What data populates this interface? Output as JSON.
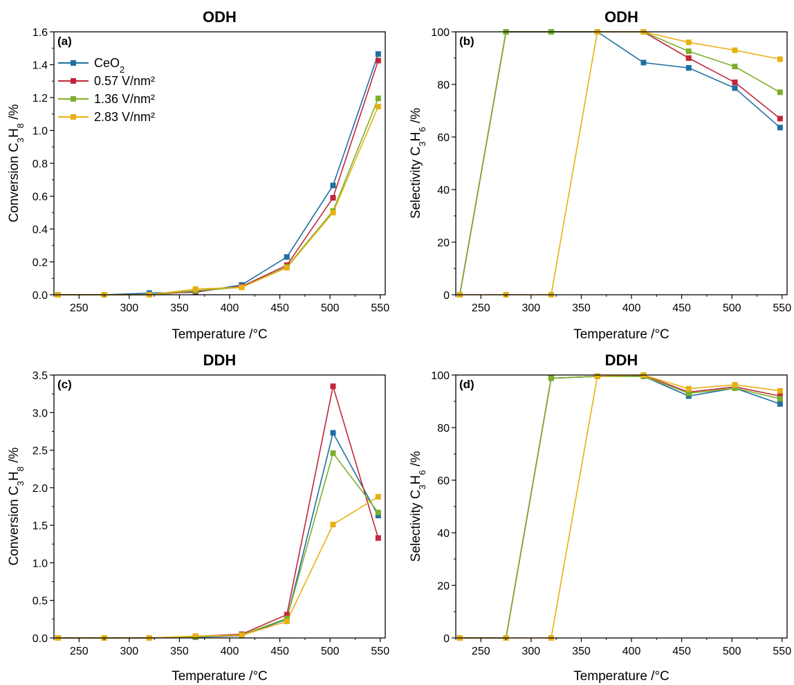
{
  "chart_data": [
    {
      "type": "line",
      "title": "ODH",
      "panel_label": "(a)",
      "xlabel": "Temperature /°C",
      "ylabel": {
        "pre": "Conversion C",
        "s1": "3",
        "mid": "H",
        "s2": "8",
        "post": " /%"
      },
      "xlim": [
        225,
        555
      ],
      "ylim": [
        0,
        1.6
      ],
      "xticks": [
        250,
        300,
        350,
        400,
        450,
        500,
        550
      ],
      "yticks": [
        "0.0",
        "0.2",
        "0.4",
        "0.6",
        "0.8",
        "1.0",
        "1.2",
        "1.4",
        "1.6"
      ],
      "legend": {
        "placement": "top-left"
      },
      "x": [
        229,
        275,
        320,
        366,
        412,
        457,
        503,
        548
      ],
      "series": [
        {
          "name": "CeO",
          "name_sub": "2",
          "color": "#1F6FA0",
          "values": [
            0.0,
            0.0,
            0.01,
            0.015,
            0.06,
            0.23,
            0.665,
            1.465
          ]
        },
        {
          "name": "0.57 V/nm²",
          "color": "#C0263B",
          "values": [
            0.0,
            0.0,
            0.0,
            0.02,
            0.05,
            0.18,
            0.59,
            1.425
          ]
        },
        {
          "name": "1.36 V/nm²",
          "color": "#7CAF2A",
          "values": [
            0.0,
            0.0,
            0.0,
            0.025,
            0.045,
            0.17,
            0.51,
            1.195
          ]
        },
        {
          "name": "2.83 V/nm²",
          "color": "#E8B012",
          "values": [
            0.0,
            0.0,
            0.0,
            0.035,
            0.045,
            0.165,
            0.5,
            1.145
          ]
        }
      ]
    },
    {
      "type": "line",
      "title": "ODH",
      "panel_label": "(b)",
      "xlabel": "Temperature /°C",
      "ylabel": {
        "pre": "Selectivity C",
        "s1": "3",
        "mid": "H",
        "s2": "6",
        "post": " /%"
      },
      "xlim": [
        225,
        555
      ],
      "ylim": [
        0,
        100
      ],
      "xticks": [
        250,
        300,
        350,
        400,
        450,
        500,
        550
      ],
      "yticks": [
        "0",
        "20",
        "40",
        "60",
        "80",
        "100"
      ],
      "x": [
        229,
        275,
        320,
        366,
        412,
        457,
        503,
        548
      ],
      "series": [
        {
          "color": "#1F6FA0",
          "values": [
            0,
            100,
            100,
            100,
            88.3,
            86.3,
            78.6,
            63.6
          ]
        },
        {
          "color": "#C0263B",
          "values": [
            0,
            100,
            100,
            100,
            100,
            90.0,
            80.8,
            67.0
          ]
        },
        {
          "color": "#7CAF2A",
          "values": [
            0,
            100,
            100,
            100,
            100,
            92.6,
            86.8,
            77.0
          ]
        },
        {
          "color": "#E8B012",
          "values": [
            0,
            0,
            0,
            100,
            100,
            96.0,
            93.0,
            89.6
          ]
        }
      ]
    },
    {
      "type": "line",
      "title": "DDH",
      "panel_label": "(c)",
      "xlabel": "Temperature /°C",
      "ylabel": {
        "pre": "Conversion C",
        "s1": "3",
        "mid": "H",
        "s2": "8",
        "post": " /%"
      },
      "xlim": [
        225,
        555
      ],
      "ylim": [
        0,
        3.5
      ],
      "xticks": [
        250,
        300,
        350,
        400,
        450,
        500,
        550
      ],
      "yticks": [
        "0.0",
        "0.5",
        "1.0",
        "1.5",
        "2.0",
        "2.5",
        "3.0",
        "3.5"
      ],
      "x": [
        229,
        275,
        320,
        366,
        412,
        457,
        503,
        548
      ],
      "series": [
        {
          "color": "#1F6FA0",
          "values": [
            0,
            0,
            0,
            0.01,
            0.03,
            0.25,
            2.73,
            1.63
          ]
        },
        {
          "color": "#C0263B",
          "values": [
            0,
            0,
            0,
            0.02,
            0.05,
            0.31,
            3.35,
            1.33
          ]
        },
        {
          "color": "#7CAF2A",
          "values": [
            0,
            0,
            0,
            0.015,
            0.04,
            0.26,
            2.46,
            1.67
          ]
        },
        {
          "color": "#E8B012",
          "values": [
            0,
            0,
            0,
            0.025,
            0.035,
            0.22,
            1.51,
            1.88
          ]
        }
      ]
    },
    {
      "type": "line",
      "title": "DDH",
      "panel_label": "(d)",
      "xlabel": "Temperature /°C",
      "ylabel": {
        "pre": "Selectivity C",
        "s1": "3",
        "mid": "H",
        "s2": "6",
        "post": " /%"
      },
      "xlim": [
        225,
        555
      ],
      "ylim": [
        0,
        100
      ],
      "xticks": [
        250,
        300,
        350,
        400,
        450,
        500,
        550
      ],
      "yticks": [
        "0",
        "20",
        "40",
        "60",
        "80",
        "100"
      ],
      "x": [
        229,
        275,
        320,
        366,
        412,
        457,
        503,
        548
      ],
      "series": [
        {
          "color": "#1F6FA0",
          "values": [
            0,
            0,
            98.8,
            99.5,
            99.5,
            92.0,
            95.0,
            89.0
          ]
        },
        {
          "color": "#C0263B",
          "values": [
            0,
            0,
            98.8,
            99.5,
            100,
            93.5,
            95.5,
            92.0
          ]
        },
        {
          "color": "#7CAF2A",
          "values": [
            0,
            0,
            98.8,
            99.5,
            99.5,
            93.0,
            95.0,
            91.0
          ]
        },
        {
          "color": "#E8B012",
          "values": [
            0,
            0,
            0,
            99.5,
            100,
            94.8,
            96.3,
            94.0
          ]
        }
      ]
    }
  ]
}
